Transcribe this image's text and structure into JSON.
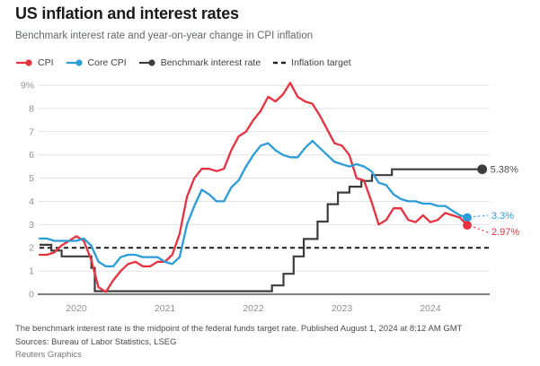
{
  "header": {
    "title": "US inflation and interest rates",
    "subtitle": "Benchmark interest rate and year-on-year change in CPI inflation"
  },
  "legend": {
    "items": [
      {
        "label": "CPI",
        "color": "#e8313f",
        "marker": "line-dot"
      },
      {
        "label": "Core CPI",
        "color": "#2b9cd8",
        "marker": "line-dot"
      },
      {
        "label": "Benchmark interest rate",
        "color": "#3d3d3d",
        "marker": "line-dot"
      },
      {
        "label": "Inflation target",
        "color": "#1f1f1f",
        "marker": "dashes"
      }
    ]
  },
  "chart_data": {
    "type": "line",
    "title": "US inflation and interest rates",
    "xlabel": "",
    "ylabel": "",
    "grid": true,
    "legend_position": "top",
    "y_axis": {
      "range": [
        0,
        9
      ],
      "ticks": [
        "0",
        "1",
        "2",
        "3",
        "4",
        "5",
        "6",
        "7",
        "8",
        "9%"
      ]
    },
    "x_axis": {
      "range": [
        2019.56,
        2024.69
      ],
      "ticks": [
        "2020",
        "2021",
        "2022",
        "2023",
        "2024"
      ],
      "tick_years": [
        2020,
        2021,
        2022,
        2023,
        2024
      ]
    },
    "x_start": "2019-08",
    "interval": "monthly",
    "series": [
      {
        "name": "CPI",
        "color": "#e8313f",
        "end_label": "2.97%",
        "values": [
          1.7,
          1.7,
          1.8,
          2.1,
          2.3,
          2.5,
          2.3,
          1.5,
          0.3,
          0.1,
          0.6,
          1.0,
          1.3,
          1.4,
          1.2,
          1.2,
          1.4,
          1.4,
          1.7,
          2.6,
          4.2,
          5.0,
          5.4,
          5.4,
          5.3,
          5.4,
          6.2,
          6.8,
          7.0,
          7.5,
          7.9,
          8.5,
          8.3,
          8.6,
          9.1,
          8.5,
          8.3,
          8.2,
          7.7,
          7.1,
          6.5,
          6.4,
          6.0,
          5.0,
          4.9,
          4.0,
          3.0,
          3.2,
          3.7,
          3.7,
          3.2,
          3.1,
          3.4,
          3.1,
          3.2,
          3.5,
          3.4,
          3.3,
          2.97
        ]
      },
      {
        "name": "Core CPI",
        "color": "#2b9cd8",
        "end_label": "3.3%",
        "values": [
          2.4,
          2.4,
          2.3,
          2.3,
          2.3,
          2.3,
          2.4,
          2.1,
          1.4,
          1.2,
          1.2,
          1.6,
          1.7,
          1.7,
          1.6,
          1.6,
          1.6,
          1.4,
          1.3,
          1.6,
          3.0,
          3.8,
          4.5,
          4.3,
          4.0,
          4.0,
          4.6,
          4.9,
          5.5,
          6.0,
          6.4,
          6.5,
          6.2,
          6.0,
          5.9,
          5.9,
          6.3,
          6.6,
          6.3,
          6.0,
          5.7,
          5.6,
          5.5,
          5.6,
          5.5,
          5.3,
          4.8,
          4.7,
          4.3,
          4.1,
          4.0,
          4.0,
          3.9,
          3.9,
          3.8,
          3.8,
          3.6,
          3.4,
          3.3
        ]
      }
    ],
    "benchmark": {
      "name": "Benchmark interest rate",
      "color": "#3d3d3d",
      "end_label": "5.38%",
      "end_label_color": "#4d4d4d",
      "end_t": 2024.585,
      "steps": [
        [
          2019.583,
          2.13
        ],
        [
          2019.717,
          1.88
        ],
        [
          2019.833,
          1.63
        ],
        [
          2020.17,
          1.13
        ],
        [
          2020.208,
          0.13
        ],
        [
          2022.21,
          0.38
        ],
        [
          2022.34,
          0.88
        ],
        [
          2022.455,
          1.63
        ],
        [
          2022.57,
          2.38
        ],
        [
          2022.725,
          3.13
        ],
        [
          2022.84,
          3.88
        ],
        [
          2022.955,
          4.38
        ],
        [
          2023.085,
          4.63
        ],
        [
          2023.22,
          4.88
        ],
        [
          2023.34,
          5.13
        ],
        [
          2023.565,
          5.38
        ]
      ]
    },
    "inflation_target": {
      "name": "Inflation target",
      "value": 2,
      "style": "dashed",
      "color": "#1f1f1f"
    }
  },
  "footer": {
    "note": "The benchmark interest rate is the midpoint of the federal funds target rate. Published August 1, 2024 at 8:12 AM GMT",
    "sources": "Sources: Bureau of Labor Statistics, LSEG",
    "credit": "Reuters Graphics"
  },
  "colors": {
    "grid": "#e3e3e3",
    "zero_axis": "#6b6b6b",
    "axis_labels": "#8f9194",
    "title": "#1a1a1a",
    "subtitle": "#63666a"
  }
}
